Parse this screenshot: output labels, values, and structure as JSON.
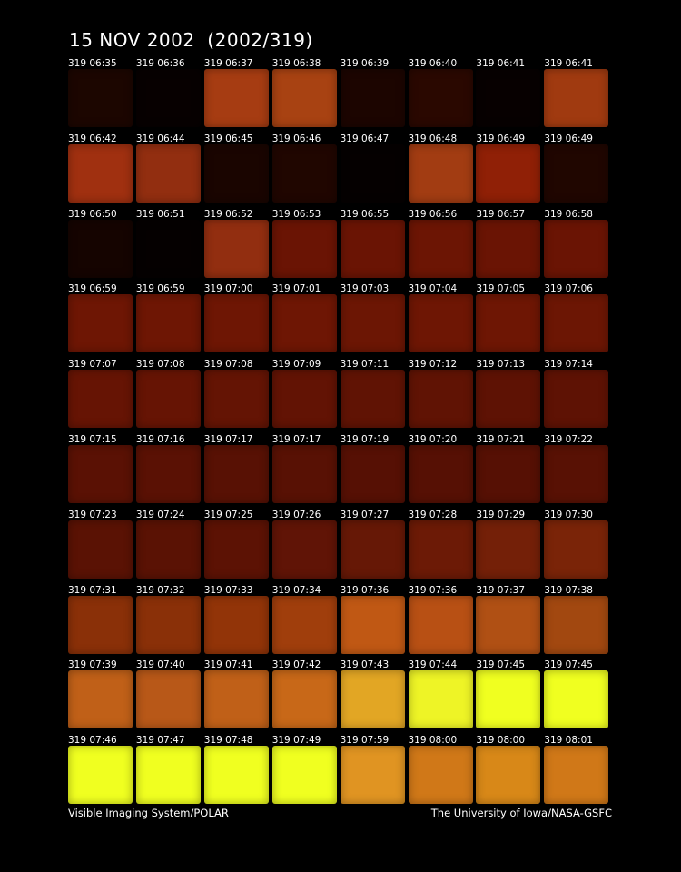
{
  "header": {
    "title": "15 NOV 2002  (2002/319)"
  },
  "tiles": [
    {
      "label": "319 06:35",
      "color": "#1c0600"
    },
    {
      "label": "319 06:36",
      "color": "#070000"
    },
    {
      "label": "319 06:37",
      "color": "#a63c12"
    },
    {
      "label": "319 06:38",
      "color": "#a84212"
    },
    {
      "label": "319 06:39",
      "color": "#1c0500"
    },
    {
      "label": "319 06:40",
      "color": "#2a0800"
    },
    {
      "label": "319 06:41",
      "color": "#070000"
    },
    {
      "label": "319 06:41",
      "color": "#a03a10"
    },
    {
      "label": "319 06:42",
      "color": "#a03010"
    },
    {
      "label": "319 06:44",
      "color": "#922e10"
    },
    {
      "label": "319 06:45",
      "color": "#1a0500"
    },
    {
      "label": "319 06:46",
      "color": "#200600"
    },
    {
      "label": "319 06:47",
      "color": "#050000"
    },
    {
      "label": "319 06:48",
      "color": "#a23c12"
    },
    {
      "label": "319 06:49",
      "color": "#902006"
    },
    {
      "label": "319 06:49",
      "color": "#200600"
    },
    {
      "label": "319 06:50",
      "color": "#150400"
    },
    {
      "label": "319 06:51",
      "color": "#050000"
    },
    {
      "label": "319 06:52",
      "color": "#922e10"
    },
    {
      "label": "319 06:53",
      "color": "#6a1404"
    },
    {
      "label": "319 06:55",
      "color": "#6a1404"
    },
    {
      "label": "319 06:56",
      "color": "#6c1504"
    },
    {
      "label": "319 06:57",
      "color": "#6a1404"
    },
    {
      "label": "319 06:58",
      "color": "#6a1404"
    },
    {
      "label": "319 06:59",
      "color": "#6e1604"
    },
    {
      "label": "319 06:59",
      "color": "#6e1604"
    },
    {
      "label": "319 07:00",
      "color": "#6e1604"
    },
    {
      "label": "319 07:01",
      "color": "#6e1604"
    },
    {
      "label": "319 07:03",
      "color": "#6c1604"
    },
    {
      "label": "319 07:04",
      "color": "#6e1604"
    },
    {
      "label": "319 07:05",
      "color": "#6e1604"
    },
    {
      "label": "319 07:06",
      "color": "#6c1604"
    },
    {
      "label": "319 07:07",
      "color": "#661404"
    },
    {
      "label": "319 07:08",
      "color": "#661404"
    },
    {
      "label": "319 07:08",
      "color": "#641404"
    },
    {
      "label": "319 07:09",
      "color": "#621304"
    },
    {
      "label": "319 07:11",
      "color": "#601304"
    },
    {
      "label": "319 07:12",
      "color": "#601304"
    },
    {
      "label": "319 07:13",
      "color": "#5e1204"
    },
    {
      "label": "319 07:14",
      "color": "#5e1204"
    },
    {
      "label": "319 07:15",
      "color": "#5a1104"
    },
    {
      "label": "319 07:16",
      "color": "#5a1104"
    },
    {
      "label": "319 07:17",
      "color": "#581104"
    },
    {
      "label": "319 07:17",
      "color": "#581104"
    },
    {
      "label": "319 07:19",
      "color": "#561004"
    },
    {
      "label": "319 07:20",
      "color": "#561004"
    },
    {
      "label": "319 07:21",
      "color": "#561004"
    },
    {
      "label": "319 07:22",
      "color": "#581104"
    },
    {
      "label": "319 07:23",
      "color": "#5a1204"
    },
    {
      "label": "319 07:24",
      "color": "#5a1204"
    },
    {
      "label": "319 07:25",
      "color": "#5c1204"
    },
    {
      "label": "319 07:26",
      "color": "#601406"
    },
    {
      "label": "319 07:27",
      "color": "#661806"
    },
    {
      "label": "319 07:28",
      "color": "#6c1a06"
    },
    {
      "label": "319 07:29",
      "color": "#742008"
    },
    {
      "label": "319 07:30",
      "color": "#7a2408"
    },
    {
      "label": "319 07:31",
      "color": "#8a3008"
    },
    {
      "label": "319 07:32",
      "color": "#8a3008"
    },
    {
      "label": "319 07:33",
      "color": "#923408"
    },
    {
      "label": "319 07:34",
      "color": "#a03e0c"
    },
    {
      "label": "319 07:36",
      "color": "#c05814"
    },
    {
      "label": "319 07:36",
      "color": "#b85014"
    },
    {
      "label": "319 07:37",
      "color": "#b05014"
    },
    {
      "label": "319 07:38",
      "color": "#a24810"
    },
    {
      "label": "319 07:39",
      "color": "#c06018"
    },
    {
      "label": "319 07:40",
      "color": "#b85818"
    },
    {
      "label": "319 07:41",
      "color": "#c06018"
    },
    {
      "label": "319 07:42",
      "color": "#c86818"
    },
    {
      "label": "319 07:43",
      "color": "#e2a624"
    },
    {
      "label": "319 07:44",
      "color": "#eef426"
    },
    {
      "label": "319 07:45",
      "color": "#f0ff20"
    },
    {
      "label": "319 07:45",
      "color": "#f0ff20"
    },
    {
      "label": "319 07:46",
      "color": "#f0ff20"
    },
    {
      "label": "319 07:47",
      "color": "#f0ff20"
    },
    {
      "label": "319 07:48",
      "color": "#f0ff20"
    },
    {
      "label": "319 07:49",
      "color": "#f0ff20"
    },
    {
      "label": "319 07:59",
      "color": "#e09422"
    },
    {
      "label": "319 08:00",
      "color": "#d07818"
    },
    {
      "label": "319 08:00",
      "color": "#d88818"
    },
    {
      "label": "319 08:01",
      "color": "#d07818"
    }
  ],
  "footer": {
    "left": "Visible Imaging System/POLAR",
    "right": "The University of Iowa/NASA-GSFC"
  }
}
